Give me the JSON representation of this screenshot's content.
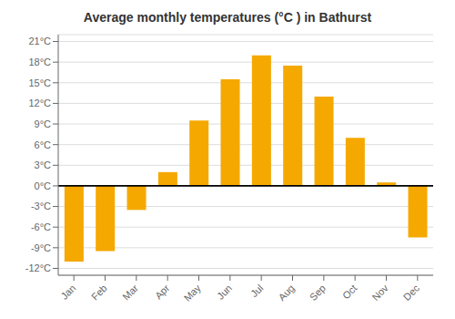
{
  "chart_data": {
    "type": "bar",
    "title": "Average monthly temperatures (°C ) in Bathurst",
    "categories": [
      "Jan",
      "Feb",
      "Mar",
      "Apr",
      "May",
      "Jun",
      "Jul",
      "Aug",
      "Sep",
      "Oct",
      "Nov",
      "Dec"
    ],
    "values": [
      -11,
      -9.5,
      -3.5,
      2.0,
      9.5,
      15.5,
      19.0,
      17.5,
      13.0,
      7.0,
      0.5,
      -7.5
    ],
    "color": "#F5A800",
    "ylim": [
      -13,
      22
    ],
    "yticks": [
      {
        "value": -12,
        "label": "-12°C"
      },
      {
        "value": -9,
        "label": "-9°C"
      },
      {
        "value": -6,
        "label": "-6°C"
      },
      {
        "value": -3,
        "label": "-3°C"
      },
      {
        "value": 0,
        "label": "0°C"
      },
      {
        "value": 3,
        "label": "3°C"
      },
      {
        "value": 6,
        "label": "6°C"
      },
      {
        "value": 9,
        "label": "9°C"
      },
      {
        "value": 12,
        "label": "12°C"
      },
      {
        "value": 15,
        "label": "15°C"
      },
      {
        "value": 18,
        "label": "18°C"
      },
      {
        "value": 21,
        "label": "21°C"
      }
    ],
    "grid": true
  }
}
